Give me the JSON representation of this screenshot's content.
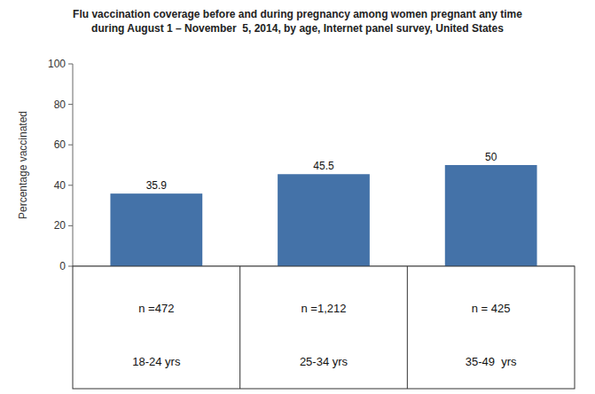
{
  "chart_data": {
    "type": "bar",
    "title": "Flu vaccination coverage before and during pregnancy among women pregnant any time\nduring August 1 – November  5, 2014, by age, Internet panel survey, United States",
    "ylabel": "Percentage vaccinated",
    "categories": [
      "18-24 yrs",
      "25-34 yrs",
      "35-49  yrs"
    ],
    "n_labels": [
      "n =472",
      "n =1,212",
      "n = 425"
    ],
    "values": [
      35.9,
      45.5,
      50.0
    ],
    "color": "#4472A8",
    "ylim": [
      0,
      100
    ],
    "yticks": [
      0,
      20,
      40,
      60,
      80,
      100
    ],
    "data_labels": true,
    "grid": false
  }
}
